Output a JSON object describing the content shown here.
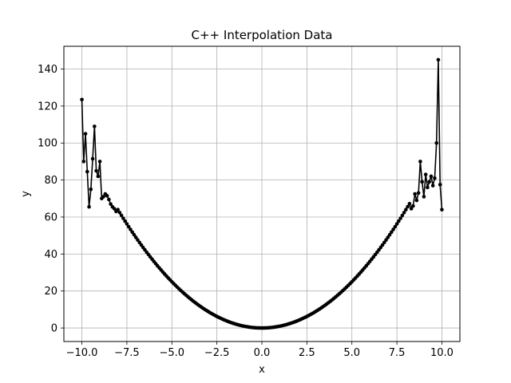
{
  "chart_data": {
    "type": "line",
    "title": "C++ Interpolation Data",
    "xlabel": "x",
    "ylabel": "y",
    "xlim": [
      -11.0,
      11.0
    ],
    "ylim": [
      -7.3,
      152.3
    ],
    "xticks": [
      -10.0,
      -7.5,
      -5.0,
      -2.5,
      0.0,
      2.5,
      5.0,
      7.5,
      10.0
    ],
    "xtick_labels": [
      "−10.0",
      "−7.5",
      "−5.0",
      "−2.5",
      "0.0",
      "2.5",
      "5.0",
      "7.5",
      "10.0"
    ],
    "yticks": [
      0,
      20,
      40,
      60,
      80,
      100,
      120,
      140
    ],
    "ytick_labels": [
      "0",
      "20",
      "40",
      "60",
      "80",
      "100",
      "120",
      "140"
    ],
    "grid": true,
    "marker": "circle",
    "color": "#000000",
    "series": [
      {
        "points": [
          [
            -10.0,
            123.5
          ],
          [
            -9.9,
            90.0
          ],
          [
            -9.8,
            105.0
          ],
          [
            -9.7,
            84.5
          ],
          [
            -9.6,
            65.5
          ],
          [
            -9.5,
            75.0
          ],
          [
            -9.4,
            91.5
          ],
          [
            -9.3,
            109.0
          ],
          [
            -9.2,
            85.0
          ],
          [
            -9.1,
            82.0
          ],
          [
            -9.0,
            90.0
          ],
          [
            -8.9,
            70.0
          ],
          [
            -8.8,
            71.0
          ],
          [
            -8.7,
            72.5
          ],
          [
            -8.6,
            71.5
          ],
          [
            -8.5,
            69.5
          ],
          [
            -8.4,
            67.0
          ],
          [
            -8.3,
            65.5
          ],
          [
            -8.2,
            64.5
          ],
          [
            -8.1,
            63.0
          ]
        ],
        "parabola": {
          "from": -8.0,
          "to": 8.0,
          "step": 0.1,
          "coef": 1.0
        },
        "points_end": [
          [
            8.1,
            65.6
          ],
          [
            8.2,
            67.2
          ],
          [
            8.3,
            64.5
          ],
          [
            8.4,
            66.0
          ],
          [
            8.5,
            72.5
          ],
          [
            8.6,
            69.0
          ],
          [
            8.7,
            73.0
          ],
          [
            8.8,
            90.0
          ],
          [
            8.9,
            79.0
          ],
          [
            9.0,
            71.0
          ],
          [
            9.1,
            83.0
          ],
          [
            9.2,
            76.0
          ],
          [
            9.3,
            79.0
          ],
          [
            9.4,
            82.0
          ],
          [
            9.5,
            77.0
          ],
          [
            9.6,
            81.0
          ],
          [
            9.7,
            100.0
          ],
          [
            9.8,
            145.0
          ],
          [
            9.9,
            77.5
          ],
          [
            10.0,
            64.0
          ]
        ]
      }
    ]
  }
}
